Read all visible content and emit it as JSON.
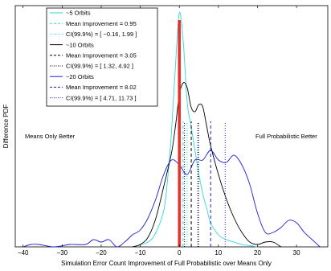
{
  "chart_data": {
    "type": "line",
    "xlabel": "Simulation Error Count Improvement of Full Probabilistic over Means Only",
    "ylabel": "Difference PDF",
    "xlim": [
      -42,
      38
    ],
    "ylim": [
      0,
      1
    ],
    "xticks": [
      -40,
      -30,
      -20,
      -10,
      0,
      10,
      20,
      30
    ],
    "yticks": [],
    "grid": false,
    "legend_position": "top-left",
    "annotations": [
      {
        "text": "Means Only Better",
        "color": "#e8302a"
      },
      {
        "text": "Full Probabilistic Better",
        "color": "#e8302a"
      }
    ],
    "zero_line": {
      "x": 0,
      "color": "#e8302a"
    },
    "series": [
      {
        "name": "~5 Orbits",
        "color": "#33d6d6",
        "x": [
          -12,
          -8,
          -6,
          -4,
          -3,
          -2,
          -1,
          0,
          1,
          2,
          3,
          4,
          5,
          6,
          7,
          8,
          10,
          12,
          14,
          16,
          18,
          20
        ],
        "y": [
          0,
          0.02,
          0.06,
          0.15,
          0.28,
          0.48,
          0.75,
          0.97,
          0.85,
          0.6,
          0.5,
          0.4,
          0.3,
          0.22,
          0.16,
          0.1,
          0.05,
          0.03,
          0.02,
          0.01,
          0.005,
          0
        ]
      },
      {
        "name": "~10 Orbits",
        "color": "#000000",
        "x": [
          -12,
          -10,
          -8,
          -6,
          -4,
          -2,
          -1,
          0,
          1,
          2,
          3,
          4,
          5,
          6,
          7,
          8,
          10,
          12,
          14,
          16,
          18,
          20,
          22,
          24,
          26
        ],
        "y": [
          0,
          0.01,
          0.04,
          0.12,
          0.25,
          0.39,
          0.5,
          0.63,
          0.68,
          0.66,
          0.58,
          0.56,
          0.59,
          0.58,
          0.5,
          0.42,
          0.3,
          0.2,
          0.12,
          0.06,
          0.02,
          0.01,
          0.02,
          0.02,
          0
        ]
      },
      {
        "name": "~20 Orbits",
        "color": "#1f1fd0",
        "x": [
          -40,
          -38,
          -36,
          -32,
          -28,
          -24,
          -22,
          -20,
          -18,
          -16,
          -14,
          -12,
          -10,
          -8,
          -6,
          -4,
          -2,
          0,
          2,
          4,
          6,
          8,
          10,
          12,
          14,
          16,
          18,
          20,
          22,
          24,
          26,
          28,
          30,
          32,
          34,
          36
        ],
        "y": [
          0,
          0.01,
          0.01,
          0,
          0.01,
          0.01,
          0.03,
          0.02,
          0.03,
          0,
          0.02,
          0.05,
          0.07,
          0.12,
          0.2,
          0.3,
          0.36,
          0.34,
          0.3,
          0.36,
          0.36,
          0.4,
          0.36,
          0.35,
          0.38,
          0.34,
          0.26,
          0.14,
          0.06,
          0.06,
          0.08,
          0.11,
          0.1,
          0.06,
          0.03,
          0
        ]
      }
    ],
    "vlines": [
      {
        "series": "~5 Orbits",
        "kind": "mean",
        "x": 0.95,
        "color": "#33d6d6"
      },
      {
        "series": "~5 Orbits",
        "kind": "ci",
        "x": -0.16,
        "color": "#33d6d6"
      },
      {
        "series": "~5 Orbits",
        "kind": "ci",
        "x": 1.99,
        "color": "#33d6d6"
      },
      {
        "series": "~10 Orbits",
        "kind": "mean",
        "x": 3.05,
        "color": "#000000"
      },
      {
        "series": "~10 Orbits",
        "kind": "ci",
        "x": 1.32,
        "color": "#000000"
      },
      {
        "series": "~10 Orbits",
        "kind": "ci",
        "x": 4.92,
        "color": "#000000"
      },
      {
        "series": "~20 Orbits",
        "kind": "mean",
        "x": 8.02,
        "color": "#1f1fd0"
      },
      {
        "series": "~20 Orbits",
        "kind": "ci",
        "x": 4.71,
        "color": "#1f1fd0"
      },
      {
        "series": "~20 Orbits",
        "kind": "ci",
        "x": 11.73,
        "color": "#1f1fd0"
      }
    ],
    "legend": [
      {
        "label": "~5 Orbits",
        "style": "solid",
        "color": "#33d6d6"
      },
      {
        "label": "Mean Improvement = 0.95",
        "style": "dashed",
        "color": "#33d6d6"
      },
      {
        "label": "CI(99.9%) = [ −0.16, 1.99 ]",
        "style": "dotted",
        "color": "#33d6d6"
      },
      {
        "label": "~10 Orbits",
        "style": "solid",
        "color": "#000000"
      },
      {
        "label": "Mean Improvement = 3.05",
        "style": "dashed",
        "color": "#000000"
      },
      {
        "label": "CI(99.9%) = [ 1.32, 4.92 ]",
        "style": "dotted",
        "color": "#000000"
      },
      {
        "label": "~20 Orbits",
        "style": "solid",
        "color": "#1f1fd0"
      },
      {
        "label": "Mean Improvement = 8.02",
        "style": "dashed",
        "color": "#1f1fd0"
      },
      {
        "label": "CI(99.9%) = [ 4.71, 11.73 ]",
        "style": "dotted",
        "color": "#1f1fd0"
      }
    ]
  }
}
